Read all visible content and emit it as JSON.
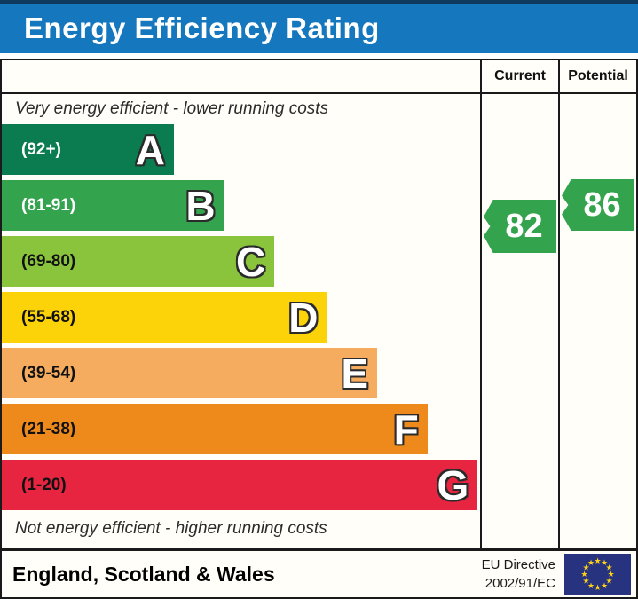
{
  "title": "Energy Efficiency Rating",
  "header": {
    "current": "Current",
    "potential": "Potential"
  },
  "notes": {
    "top": "Very energy efficient - lower running costs",
    "bottom": "Not energy efficient - higher running costs"
  },
  "bands": [
    {
      "letter": "A",
      "range": "(92+)",
      "color": "#0b7c4f",
      "width_pct": 36,
      "range_text_color": "#ffffff"
    },
    {
      "letter": "B",
      "range": "(81-91)",
      "color": "#34a34e",
      "width_pct": 46.5,
      "range_text_color": "#ffffff"
    },
    {
      "letter": "C",
      "range": "(69-80)",
      "color": "#8ac43d",
      "width_pct": 57,
      "range_text_color": "#111111"
    },
    {
      "letter": "D",
      "range": "(55-68)",
      "color": "#fcd309",
      "width_pct": 68,
      "range_text_color": "#111111"
    },
    {
      "letter": "E",
      "range": "(39-54)",
      "color": "#f6ac5e",
      "width_pct": 78.5,
      "range_text_color": "#111111"
    },
    {
      "letter": "F",
      "range": "(21-38)",
      "color": "#ee8a1c",
      "width_pct": 89,
      "range_text_color": "#111111"
    },
    {
      "letter": "G",
      "range": "(1-20)",
      "color": "#e72540",
      "width_pct": 99.5,
      "range_text_color": "#111111"
    }
  ],
  "ratings": {
    "current": {
      "value": "82",
      "color": "#34a34e"
    },
    "potential": {
      "value": "86",
      "color": "#34a34e"
    }
  },
  "footer": {
    "region": "England, Scotland & Wales",
    "directive_line1": "EU Directive",
    "directive_line2": "2002/91/EC"
  },
  "colors": {
    "title_bg": "#1577bd",
    "title_text": "#ffffff",
    "border": "#1a1a1a",
    "flag_bg": "#27337f",
    "flag_star": "#fcd116"
  },
  "chart_data": {
    "type": "bar",
    "title": "Energy Efficiency Rating",
    "categories": [
      "A",
      "B",
      "C",
      "D",
      "E",
      "F",
      "G"
    ],
    "band_ranges": [
      "92+",
      "81-91",
      "69-80",
      "55-68",
      "39-54",
      "21-38",
      "1-20"
    ],
    "band_colors": [
      "#0b7c4f",
      "#34a34e",
      "#8ac43d",
      "#fcd309",
      "#f6ac5e",
      "#ee8a1c",
      "#e72540"
    ],
    "bar_lengths_pct": [
      36,
      46.5,
      57,
      68,
      78.5,
      89,
      99.5
    ],
    "series": [
      {
        "name": "Current",
        "values": [
          82
        ],
        "band": "B",
        "color": "#34a34e"
      },
      {
        "name": "Potential",
        "values": [
          86
        ],
        "band": "B",
        "color": "#34a34e"
      }
    ],
    "value_range": [
      1,
      100
    ],
    "annotations": [
      "Very energy efficient - lower running costs",
      "Not energy efficient - higher running costs",
      "England, Scotland & Wales",
      "EU Directive 2002/91/EC"
    ],
    "legend_position": "none",
    "grid": false
  }
}
